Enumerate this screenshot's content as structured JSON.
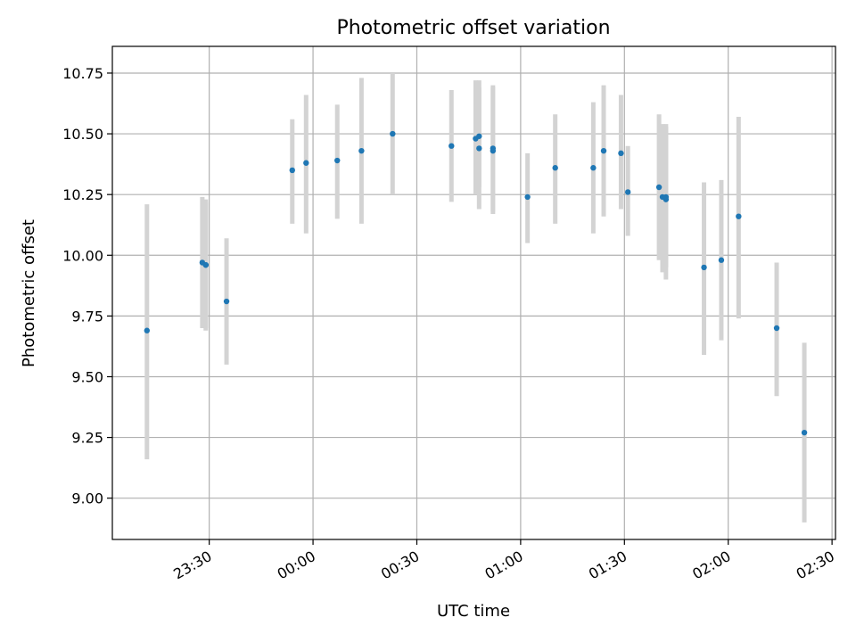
{
  "chart_data": {
    "type": "scatter",
    "title": "Photometric offset variation",
    "xlabel": "UTC time",
    "ylabel": "Photometric offset",
    "x_ticks": [
      "23:30",
      "00:00",
      "00:30",
      "01:00",
      "01:30",
      "02:00",
      "02:30"
    ],
    "y_ticks": [
      "9.00",
      "9.25",
      "9.50",
      "9.75",
      "10.00",
      "10.25",
      "10.50",
      "10.75"
    ],
    "x_range": [
      "23:02",
      "02:31"
    ],
    "ylim": [
      8.83,
      10.86
    ],
    "grid": true,
    "colors": {
      "points": "#1f77b4",
      "errorbars": "#d3d3d3",
      "grid": "#b0b0b0"
    },
    "points": [
      {
        "time": "23:12",
        "y": 9.69,
        "err_low": 9.16,
        "err_high": 10.21
      },
      {
        "time": "23:28",
        "y": 9.97,
        "err_low": 9.7,
        "err_high": 10.24
      },
      {
        "time": "23:29",
        "y": 9.96,
        "err_low": 9.7,
        "err_high": 10.22
      },
      {
        "time": "23:29",
        "y": 9.96,
        "err_low": 9.69,
        "err_high": 10.23
      },
      {
        "time": "23:35",
        "y": 9.81,
        "err_low": 9.55,
        "err_high": 10.07
      },
      {
        "time": "23:54",
        "y": 10.35,
        "err_low": 10.13,
        "err_high": 10.56
      },
      {
        "time": "23:58",
        "y": 10.38,
        "err_low": 10.09,
        "err_high": 10.66
      },
      {
        "time": "00:07",
        "y": 10.39,
        "err_low": 10.15,
        "err_high": 10.62
      },
      {
        "time": "00:14",
        "y": 10.43,
        "err_low": 10.13,
        "err_high": 10.73
      },
      {
        "time": "00:23",
        "y": 10.5,
        "err_low": 10.25,
        "err_high": 10.75
      },
      {
        "time": "00:40",
        "y": 10.45,
        "err_low": 10.22,
        "err_high": 10.68
      },
      {
        "time": "00:47",
        "y": 10.48,
        "err_low": 10.25,
        "err_high": 10.72
      },
      {
        "time": "00:48",
        "y": 10.49,
        "err_low": 10.28,
        "err_high": 10.72
      },
      {
        "time": "00:48",
        "y": 10.44,
        "err_low": 10.19,
        "err_high": 10.69
      },
      {
        "time": "00:52",
        "y": 10.43,
        "err_low": 10.17,
        "err_high": 10.69
      },
      {
        "time": "00:52",
        "y": 10.44,
        "err_low": 10.18,
        "err_high": 10.7
      },
      {
        "time": "01:02",
        "y": 10.24,
        "err_low": 10.05,
        "err_high": 10.42
      },
      {
        "time": "01:10",
        "y": 10.36,
        "err_low": 10.13,
        "err_high": 10.58
      },
      {
        "time": "01:21",
        "y": 10.36,
        "err_low": 10.09,
        "err_high": 10.63
      },
      {
        "time": "01:24",
        "y": 10.43,
        "err_low": 10.16,
        "err_high": 10.7
      },
      {
        "time": "01:29",
        "y": 10.42,
        "err_low": 10.19,
        "err_high": 10.66
      },
      {
        "time": "01:31",
        "y": 10.26,
        "err_low": 10.08,
        "err_high": 10.45
      },
      {
        "time": "01:40",
        "y": 10.28,
        "err_low": 9.98,
        "err_high": 10.58
      },
      {
        "time": "01:41",
        "y": 10.24,
        "err_low": 9.93,
        "err_high": 10.54
      },
      {
        "time": "01:42",
        "y": 10.23,
        "err_low": 9.9,
        "err_high": 10.54
      },
      {
        "time": "01:42",
        "y": 10.24,
        "err_low": 9.95,
        "err_high": 10.53
      },
      {
        "time": "01:53",
        "y": 9.95,
        "err_low": 9.59,
        "err_high": 10.3
      },
      {
        "time": "01:58",
        "y": 9.98,
        "err_low": 9.65,
        "err_high": 10.31
      },
      {
        "time": "02:03",
        "y": 10.16,
        "err_low": 9.74,
        "err_high": 10.57
      },
      {
        "time": "02:14",
        "y": 9.7,
        "err_low": 9.42,
        "err_high": 9.97
      },
      {
        "time": "02:22",
        "y": 9.27,
        "err_low": 8.9,
        "err_high": 9.64
      }
    ]
  }
}
